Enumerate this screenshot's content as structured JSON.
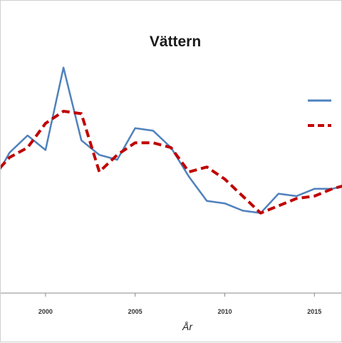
{
  "chart_data": {
    "type": "line",
    "title": "Vättern",
    "xlabel": "År",
    "ylabel": "",
    "xlim": [
      1997.5,
      2016.5
    ],
    "ylim": [
      0,
      100
    ],
    "x_ticks": [
      2000,
      2005,
      2010,
      2015
    ],
    "grid": false,
    "legend_position": "top-right",
    "x": [
      1997,
      1998,
      1999,
      2000,
      2001,
      2002,
      2003,
      2004,
      2005,
      2006,
      2007,
      2008,
      2009,
      2010,
      2011,
      2012,
      2013,
      2014,
      2015,
      2016,
      2017
    ],
    "series": [
      {
        "name": "",
        "style": "solid",
        "color": "#4f81bd",
        "values": [
          45,
          58,
          65,
          59,
          93,
          63,
          57,
          55,
          68,
          67,
          60,
          48,
          38,
          37,
          34,
          33,
          41,
          40,
          43,
          43,
          45
        ]
      },
      {
        "name": "",
        "style": "dashed",
        "color": "#c00000",
        "values": [
          48,
          56,
          60,
          70,
          75,
          74,
          50,
          57,
          62,
          62,
          60,
          50,
          52,
          47,
          40,
          33,
          36,
          39,
          40,
          43,
          45
        ]
      }
    ]
  }
}
